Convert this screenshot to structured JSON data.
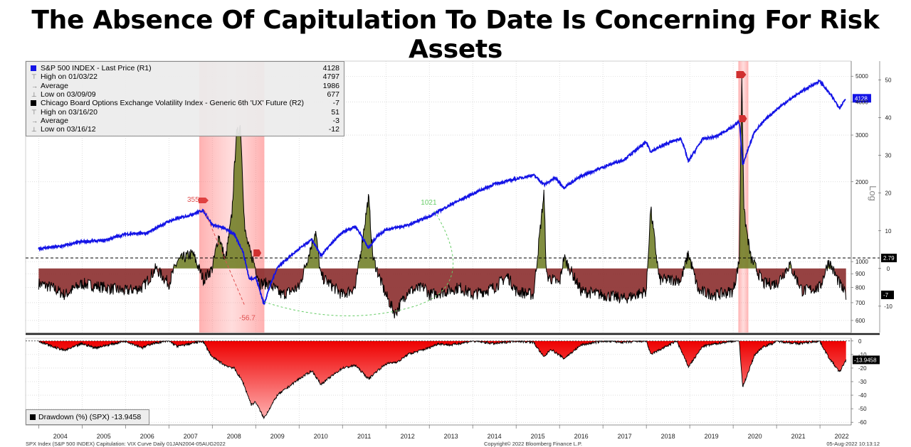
{
  "title": "The Absence Of Capitulation To Date Is Concerning For Risk Assets",
  "legend": {
    "items": [
      {
        "label": "S&P 500 INDEX - Last Price (R1)",
        "value": "4128",
        "color": "#1414e6",
        "kind": "series"
      },
      {
        "label": "High on 01/03/22",
        "value": "4797",
        "kind": "high"
      },
      {
        "label": "Average",
        "value": "1986",
        "kind": "avg"
      },
      {
        "label": "Low on 03/09/09",
        "value": "677",
        "kind": "low"
      },
      {
        "label": "Chicago Board Options Exchange Volatility Index - Generic 6th 'UX' Future (R2)",
        "value": "-7",
        "color": "#000000",
        "kind": "series"
      },
      {
        "label": "High on 03/16/20",
        "value": "51",
        "kind": "high"
      },
      {
        "label": "Average",
        "value": "-3",
        "kind": "avg"
      },
      {
        "label": "Low on 03/16/12",
        "value": "-12",
        "kind": "low"
      }
    ]
  },
  "drawdown_legend": {
    "label": "Drawdown (%) (SPX)",
    "value": "-13.9458"
  },
  "footer": {
    "left": "SPX Index (S&P 500 INDEX) Capitulation: VIX Curve  Daily 01JAN2004-05AUG2022",
    "center": "Copyright© 2022 Bloomberg Finance L.P.",
    "right": "05-Aug-2022 10:13:12"
  },
  "colors": {
    "spx": "#1414e6",
    "vix": "#000000",
    "below_zero_fill": "#8b2e2e",
    "above_zero_fill": "#6b7a1e",
    "shade": "#ff8c8c",
    "drawdown": "#e00000"
  },
  "chart_data": [
    {
      "type": "line",
      "panel": "upper",
      "x_labels": [
        "2004",
        "2005",
        "2006",
        "2007",
        "2008",
        "2009",
        "2010",
        "2011",
        "2012",
        "2013",
        "2014",
        "2015",
        "2016",
        "2017",
        "2018",
        "2019",
        "2020",
        "2021",
        "2022"
      ],
      "log_scale_left_axis": true,
      "axis_label_right": "Log",
      "spx_ticks": [
        600,
        700,
        800,
        900,
        1000,
        2000,
        3000,
        4000,
        5000
      ],
      "vix_ticks": [
        -10,
        0,
        10,
        20,
        30,
        40,
        50
      ],
      "vix_ylim": [
        -17,
        55
      ],
      "series": [
        {
          "name": "S&P 500 INDEX - Last Price (R1)",
          "axis": "spx",
          "x": [
            2004.0,
            2004.5,
            2005.0,
            2005.5,
            2006.0,
            2006.5,
            2007.0,
            2007.5,
            2007.78,
            2008.0,
            2008.3,
            2008.5,
            2008.7,
            2008.85,
            2009.0,
            2009.19,
            2009.5,
            2010.0,
            2010.3,
            2010.5,
            2011.0,
            2011.3,
            2011.6,
            2011.8,
            2012.0,
            2012.5,
            2013.0,
            2013.5,
            2014.0,
            2014.5,
            2015.0,
            2015.4,
            2015.65,
            2015.9,
            2016.1,
            2016.5,
            2017.0,
            2017.5,
            2018.0,
            2018.1,
            2018.5,
            2018.8,
            2018.97,
            2019.3,
            2019.6,
            2020.0,
            2020.14,
            2020.22,
            2020.5,
            2020.8,
            2021.0,
            2021.5,
            2021.99,
            2022.2,
            2022.45,
            2022.6
          ],
          "values": [
            1120,
            1140,
            1190,
            1200,
            1270,
            1280,
            1420,
            1500,
            1560,
            1380,
            1330,
            1270,
            1100,
            860,
            870,
            690,
            950,
            1115,
            1210,
            1050,
            1290,
            1360,
            1120,
            1250,
            1320,
            1370,
            1480,
            1640,
            1800,
            1960,
            2050,
            2120,
            1950,
            2070,
            1900,
            2100,
            2270,
            2430,
            2820,
            2600,
            2800,
            2910,
            2380,
            2900,
            2960,
            3230,
            3380,
            2300,
            3100,
            3500,
            3750,
            4300,
            4797,
            4350,
            3800,
            4128
          ]
        },
        {
          "name": "Chicago Board Options Exchange Volatility Index - Generic 6th 'UX' Future (R2)",
          "axis": "vix",
          "x": [
            2004.0,
            2004.3,
            2004.6,
            2005.0,
            2005.5,
            2006.0,
            2006.4,
            2006.7,
            2007.0,
            2007.2,
            2007.55,
            2007.8,
            2008.0,
            2008.15,
            2008.3,
            2008.45,
            2008.55,
            2008.65,
            2008.75,
            2008.85,
            2008.95,
            2009.1,
            2009.3,
            2009.6,
            2010.0,
            2010.38,
            2010.5,
            2010.8,
            2011.0,
            2011.3,
            2011.6,
            2011.7,
            2011.9,
            2012.0,
            2012.21,
            2012.5,
            2012.9,
            2013.0,
            2013.4,
            2013.7,
            2014.0,
            2014.5,
            2014.8,
            2015.0,
            2015.4,
            2015.64,
            2015.7,
            2016.0,
            2016.1,
            2016.5,
            2017.0,
            2017.5,
            2018.0,
            2018.1,
            2018.3,
            2018.8,
            2018.97,
            2019.2,
            2019.6,
            2020.0,
            2020.14,
            2020.2,
            2020.25,
            2020.4,
            2020.7,
            2021.0,
            2021.3,
            2021.6,
            2022.0,
            2022.2,
            2022.45,
            2022.6
          ],
          "values": [
            -4,
            -5,
            -7,
            -4,
            -5,
            -6,
            -5,
            0,
            -4,
            2,
            4,
            -3,
            0,
            9,
            2,
            14,
            35,
            38,
            10,
            5,
            2,
            -4,
            -4,
            -7,
            -5,
            10,
            -2,
            -5,
            -7,
            -5,
            19,
            3,
            -4,
            -7,
            -12,
            -6,
            -5,
            -7,
            -6,
            -5,
            -7,
            -5,
            -2,
            -6,
            -7,
            20,
            -2,
            -4,
            3,
            -6,
            -7,
            -8,
            -6,
            16,
            -3,
            -3,
            4,
            -6,
            -7,
            -6,
            2,
            51,
            15,
            3,
            -4,
            -4,
            1,
            -6,
            -5,
            2,
            -4,
            -7
          ]
        }
      ],
      "reference_line": {
        "axis": "vix",
        "value": 2.79,
        "label": "2.79",
        "style": "dashed"
      },
      "last_value_tags": [
        {
          "label": "4128",
          "axis": "spx",
          "value": 4128
        },
        {
          "label": "-7",
          "axis": "vix",
          "value": -7
        }
      ],
      "shaded_periods": [
        {
          "start": 2007.7,
          "end": 2009.2
        },
        {
          "start": 2020.12,
          "end": 2020.35
        }
      ],
      "annotations": [
        {
          "text": "355",
          "color": "#e05050",
          "x": 2007.75,
          "y_spx": 1560
        },
        {
          "text": "-56.7",
          "color": "#e05050",
          "x": 2008.75,
          "y_spx": 640
        },
        {
          "text": "1021",
          "color": "#66cc66",
          "x": 2009.35,
          "y_spx": 1700
        }
      ]
    },
    {
      "type": "area",
      "panel": "lower",
      "title": "Drawdown (%) (SPX)",
      "ylim": [
        -62,
        2
      ],
      "y_ticks": [
        0,
        -10,
        -20,
        -30,
        -40,
        -50,
        -60
      ],
      "last_value": -13.9458,
      "series": [
        {
          "name": "Drawdown (%) (SPX)",
          "x": [
            2004.0,
            2004.3,
            2004.6,
            2005.0,
            2005.3,
            2005.6,
            2006.0,
            2006.4,
            2006.6,
            2007.0,
            2007.2,
            2007.5,
            2007.78,
            2008.0,
            2008.3,
            2008.5,
            2008.7,
            2008.9,
            2009.0,
            2009.19,
            2009.5,
            2010.0,
            2010.3,
            2010.5,
            2011.0,
            2011.3,
            2011.6,
            2011.8,
            2012.0,
            2012.3,
            2012.5,
            2013.0,
            2013.2,
            2013.5,
            2014.0,
            2014.5,
            2015.0,
            2015.4,
            2015.64,
            2015.8,
            2016.1,
            2016.5,
            2017.0,
            2017.5,
            2018.0,
            2018.1,
            2018.4,
            2018.7,
            2018.97,
            2019.3,
            2019.6,
            2020.0,
            2020.14,
            2020.22,
            2020.5,
            2020.7,
            2020.9,
            2021.0,
            2021.5,
            2021.99,
            2022.2,
            2022.45,
            2022.6
          ],
          "values": [
            0,
            -4,
            -7,
            -2,
            -5,
            -3,
            0,
            -5,
            -2,
            0,
            -4,
            -2,
            0,
            -12,
            -18,
            -20,
            -30,
            -47,
            -45,
            -57,
            -40,
            -28,
            -22,
            -32,
            -20,
            -18,
            -28,
            -22,
            -17,
            -15,
            -10,
            -5,
            -2,
            -3,
            0,
            -2,
            0,
            -1,
            -12,
            -6,
            -13,
            -3,
            0,
            -1,
            0,
            -10,
            -5,
            0,
            -19,
            -4,
            -2,
            0,
            0,
            -34,
            -10,
            -4,
            -2,
            0,
            -2,
            0,
            -12,
            -23,
            -13.9458
          ]
        }
      ]
    }
  ]
}
